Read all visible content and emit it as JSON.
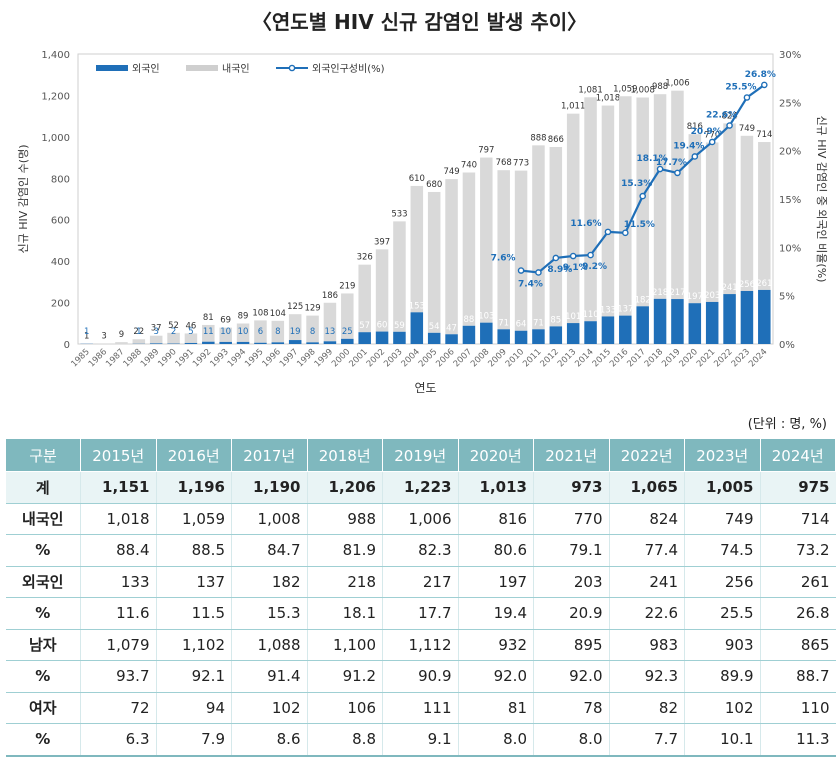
{
  "title": "〈연도별 HIV 신규 감염인 발생 추이〉",
  "unit_note": "(단위 : 명, %)",
  "chart_data": {
    "type": "bar",
    "stacked": true,
    "xlabel": "연도",
    "ylabel": "신규 HIV 감염인 수(명)",
    "y2label": "신규 HIV 감염인 중 외국인 비율(%)",
    "ylim": [
      0,
      1400
    ],
    "y2lim": [
      0,
      30
    ],
    "yticks": [
      "0",
      "200",
      "400",
      "600",
      "800",
      "1,000",
      "1,200",
      "1,400"
    ],
    "y2ticks": [
      "0%",
      "5%",
      "10%",
      "15%",
      "20%",
      "25%",
      "30%"
    ],
    "legend_position": "top-left",
    "categories": [
      "1985",
      "1986",
      "1987",
      "1988",
      "1989",
      "1990",
      "1991",
      "1992",
      "1993",
      "1994",
      "1995",
      "1996",
      "1997",
      "1998",
      "1999",
      "2000",
      "2001",
      "2002",
      "2003",
      "2004",
      "2005",
      "2006",
      "2007",
      "2008",
      "2009",
      "2010",
      "2011",
      "2012",
      "2013",
      "2014",
      "2015",
      "2016",
      "2017",
      "2018",
      "2019",
      "2020",
      "2021",
      "2022",
      "2023",
      "2024"
    ],
    "series": [
      {
        "name": "외국인",
        "color": "#1f6fb8",
        "values": [
          1,
          null,
          null,
          1,
          3,
          2,
          5,
          11,
          10,
          10,
          6,
          8,
          19,
          8,
          13,
          25,
          57,
          60,
          59,
          153,
          54,
          47,
          88,
          103,
          71,
          64,
          71,
          85,
          101,
          110,
          133,
          137,
          182,
          218,
          217,
          197,
          203,
          241,
          256,
          261
        ]
      },
      {
        "name": "내국인",
        "color": "#d9d9d9",
        "values": [
          1,
          3,
          9,
          22,
          37,
          52,
          46,
          81,
          69,
          89,
          108,
          104,
          125,
          129,
          186,
          219,
          326,
          397,
          533,
          610,
          680,
          749,
          740,
          797,
          768,
          773,
          888,
          866,
          1011,
          1081,
          1018,
          1059,
          1008,
          988,
          1006,
          816,
          770,
          824,
          749,
          714
        ]
      },
      {
        "name": "외국인구성비(%)",
        "type": "line",
        "axis": "right",
        "color": "#1f6fb8",
        "x": [
          "2010",
          "2011",
          "2012",
          "2013",
          "2014",
          "2015",
          "2016",
          "2017",
          "2018",
          "2019",
          "2020",
          "2021",
          "2022",
          "2023",
          "2024"
        ],
        "values": [
          7.6,
          7.4,
          8.9,
          9.1,
          9.2,
          11.6,
          11.5,
          15.3,
          18.1,
          17.7,
          19.4,
          20.9,
          22.6,
          25.5,
          26.8
        ],
        "labels": [
          "7.6%",
          "7.4%",
          "8.9%",
          "9.1%",
          "9.2%",
          "11.6%",
          "11.5%",
          "15.3%",
          "18.1%",
          "17.7%",
          "19.4%",
          "20.9%",
          "22.6%",
          "25.5%",
          "26.8%"
        ]
      }
    ]
  },
  "table": {
    "headers": [
      "구분",
      "2015년",
      "2016년",
      "2017년",
      "2018년",
      "2019년",
      "2020년",
      "2021년",
      "2022년",
      "2023년",
      "2024년"
    ],
    "rows": [
      {
        "label": "계",
        "values": [
          "1,151",
          "1,196",
          "1,190",
          "1,206",
          "1,223",
          "1,013",
          "973",
          "1,065",
          "1,005",
          "975"
        ]
      },
      {
        "label": "내국인",
        "values": [
          "1,018",
          "1,059",
          "1,008",
          "988",
          "1,006",
          "816",
          "770",
          "824",
          "749",
          "714"
        ]
      },
      {
        "label": "%",
        "values": [
          "88.4",
          "88.5",
          "84.7",
          "81.9",
          "82.3",
          "80.6",
          "79.1",
          "77.4",
          "74.5",
          "73.2"
        ]
      },
      {
        "label": "외국인",
        "values": [
          "133",
          "137",
          "182",
          "218",
          "217",
          "197",
          "203",
          "241",
          "256",
          "261"
        ]
      },
      {
        "label": "%",
        "values": [
          "11.6",
          "11.5",
          "15.3",
          "18.1",
          "17.7",
          "19.4",
          "20.9",
          "22.6",
          "25.5",
          "26.8"
        ]
      },
      {
        "label": "남자",
        "values": [
          "1,079",
          "1,102",
          "1,088",
          "1,100",
          "1,112",
          "932",
          "895",
          "983",
          "903",
          "865"
        ]
      },
      {
        "label": "%",
        "values": [
          "93.7",
          "92.1",
          "91.4",
          "91.2",
          "90.9",
          "92.0",
          "92.0",
          "92.3",
          "89.9",
          "88.7"
        ]
      },
      {
        "label": "여자",
        "values": [
          "72",
          "94",
          "102",
          "106",
          "111",
          "81",
          "78",
          "82",
          "102",
          "110"
        ]
      },
      {
        "label": "%",
        "values": [
          "6.3",
          "7.9",
          "8.6",
          "8.8",
          "9.1",
          "8.0",
          "8.0",
          "7.7",
          "10.1",
          "11.3"
        ]
      }
    ]
  }
}
